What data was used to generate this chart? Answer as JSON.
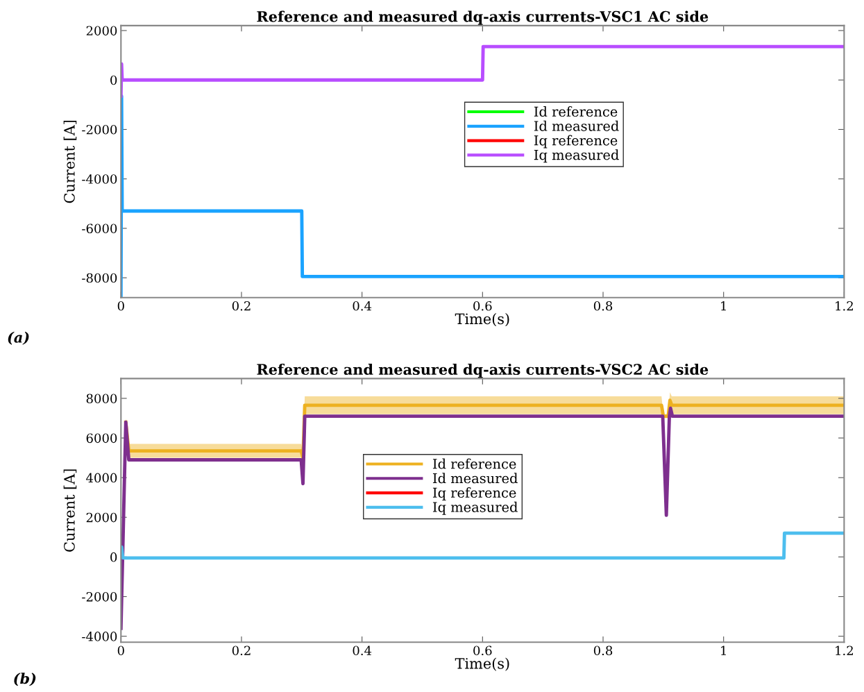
{
  "chart_data": [
    {
      "type": "line",
      "title": "Reference and measured dq-axis currents-VSC1 AC side",
      "xlabel": "Time(s)",
      "ylabel": "Current [A]",
      "annotations": [
        "(a)"
      ],
      "xlim": [
        0,
        1.2
      ],
      "xticks": [
        0,
        0.2,
        0.4,
        0.6,
        0.8,
        1,
        1.2
      ],
      "ylim": [
        -8800,
        2200
      ],
      "yticks": [
        -8000,
        -6000,
        -4000,
        -2000,
        0,
        2000
      ],
      "grid": false,
      "legend": "center",
      "series": [
        {
          "name": "Id reference",
          "color": "#00ff00"
        },
        {
          "name": "Id measured",
          "color": "#1aa3ff",
          "x": [
            0,
            0.001,
            0.002,
            0.3,
            0.301,
            1.2
          ],
          "values": [
            -8800,
            -650,
            -5300,
            -5300,
            -7950,
            -7950
          ]
        },
        {
          "name": "Iq reference",
          "color": "#ff0000"
        },
        {
          "name": "Iq measured",
          "color": "#b84dff",
          "x": [
            0,
            0.001,
            0.002,
            0.6,
            0.601,
            1.2
          ],
          "values": [
            -650,
            650,
            0,
            0,
            1350,
            1350
          ]
        }
      ]
    },
    {
      "type": "line",
      "title": "Reference and measured dq-axis currents-VSC2 AC side",
      "xlabel": "Time(s)",
      "ylabel": "Current [A]",
      "annotations": [
        "(b)"
      ],
      "xlim": [
        0,
        1.2
      ],
      "xticks": [
        0,
        0.2,
        0.4,
        0.6,
        0.8,
        1,
        1.2
      ],
      "ylim": [
        -4300,
        9000
      ],
      "yticks": [
        -4000,
        -2000,
        0,
        2000,
        4000,
        6000,
        8000
      ],
      "grid": false,
      "legend": "center",
      "series": [
        {
          "name": "Id reference",
          "color": "#edb120",
          "x": [
            0.008,
            0.013,
            0.299,
            0.302,
            0.305,
            0.897,
            0.9,
            0.908,
            0.911,
            0.914,
            1.2
          ],
          "values": [
            6800,
            5350,
            5350,
            5000,
            7650,
            7650,
            7100,
            7100,
            7900,
            7650,
            7650
          ],
          "lower": [
            6600,
            5000,
            5000,
            4800,
            7200,
            7200,
            7000,
            7000,
            7300,
            7200,
            7200
          ],
          "upper": [
            7000,
            5700,
            5700,
            5200,
            8100,
            8100,
            7200,
            7200,
            8300,
            8100,
            8100
          ]
        },
        {
          "name": "Id measured",
          "color": "#7e2f8e",
          "x": [
            0,
            0.008,
            0.013,
            0.299,
            0.302,
            0.305,
            0.899,
            0.905,
            0.91,
            0.912,
            0.915,
            1.2
          ],
          "values": [
            -3600,
            6800,
            4900,
            4900,
            3700,
            7100,
            7100,
            2100,
            7100,
            7500,
            7100,
            7100
          ]
        },
        {
          "name": "Iq reference",
          "color": "#ff0000"
        },
        {
          "name": "Iq measured",
          "color": "#4dbeee",
          "x": [
            0,
            0.001,
            0.003,
            1.1,
            1.101,
            1.2
          ],
          "values": [
            0,
            500,
            -50,
            -50,
            1200,
            1200
          ]
        }
      ]
    }
  ]
}
